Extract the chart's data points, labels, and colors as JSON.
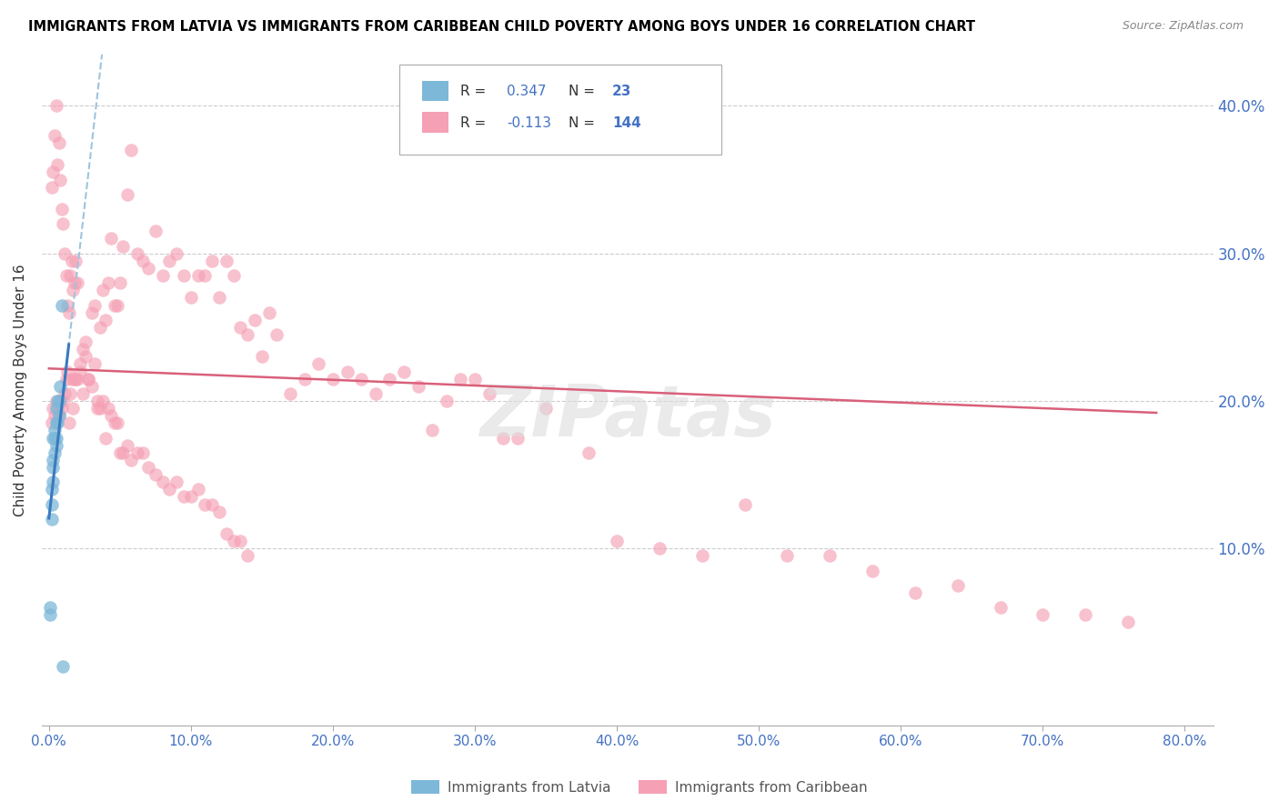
{
  "title": "IMMIGRANTS FROM LATVIA VS IMMIGRANTS FROM CARIBBEAN CHILD POVERTY AMONG BOYS UNDER 16 CORRELATION CHART",
  "source": "Source: ZipAtlas.com",
  "ylabel": "Child Poverty Among Boys Under 16",
  "ytick_labels": [
    "",
    "10.0%",
    "20.0%",
    "30.0%",
    "40.0%"
  ],
  "ytick_vals": [
    0.0,
    0.1,
    0.2,
    0.3,
    0.4
  ],
  "xtick_vals": [
    0.0,
    0.1,
    0.2,
    0.3,
    0.4,
    0.5,
    0.6,
    0.7,
    0.8
  ],
  "xlim": [
    -0.005,
    0.82
  ],
  "ylim": [
    -0.02,
    0.435
  ],
  "R_latvia": 0.347,
  "N_latvia": 23,
  "R_caribbean": -0.113,
  "N_caribbean": 144,
  "blue_color": "#7db8d8",
  "pink_color": "#f5a0b5",
  "trend_blue_solid": "#3a7abf",
  "trend_blue_dashed": "#9dc4df",
  "trend_pink": "#d9607a",
  "watermark": "ZIPatas",
  "latvia_x": [
    0.001,
    0.001,
    0.002,
    0.002,
    0.002,
    0.003,
    0.003,
    0.003,
    0.003,
    0.004,
    0.004,
    0.004,
    0.005,
    0.005,
    0.005,
    0.005,
    0.006,
    0.006,
    0.007,
    0.007,
    0.008,
    0.009,
    0.01
  ],
  "latvia_y": [
    0.055,
    0.06,
    0.12,
    0.13,
    0.14,
    0.145,
    0.155,
    0.16,
    0.175,
    0.165,
    0.175,
    0.18,
    0.17,
    0.175,
    0.185,
    0.195,
    0.185,
    0.2,
    0.19,
    0.2,
    0.21,
    0.265,
    0.02
  ],
  "caribbean_x": [
    0.002,
    0.003,
    0.004,
    0.005,
    0.006,
    0.007,
    0.008,
    0.009,
    0.01,
    0.011,
    0.012,
    0.013,
    0.014,
    0.015,
    0.016,
    0.017,
    0.018,
    0.019,
    0.02,
    0.022,
    0.024,
    0.026,
    0.028,
    0.03,
    0.032,
    0.034,
    0.036,
    0.038,
    0.04,
    0.042,
    0.044,
    0.046,
    0.048,
    0.05,
    0.052,
    0.055,
    0.058,
    0.062,
    0.066,
    0.07,
    0.075,
    0.08,
    0.085,
    0.09,
    0.095,
    0.1,
    0.105,
    0.11,
    0.115,
    0.12,
    0.125,
    0.13,
    0.135,
    0.14,
    0.145,
    0.15,
    0.155,
    0.16,
    0.17,
    0.18,
    0.19,
    0.2,
    0.21,
    0.22,
    0.23,
    0.24,
    0.25,
    0.26,
    0.27,
    0.28,
    0.29,
    0.3,
    0.31,
    0.32,
    0.33,
    0.35,
    0.38,
    0.4,
    0.43,
    0.46,
    0.49,
    0.52,
    0.55,
    0.58,
    0.61,
    0.64,
    0.67,
    0.7,
    0.73,
    0.76
  ],
  "caribbean_y": [
    0.185,
    0.195,
    0.19,
    0.2,
    0.195,
    0.19,
    0.2,
    0.195,
    0.2,
    0.205,
    0.215,
    0.22,
    0.185,
    0.205,
    0.215,
    0.195,
    0.215,
    0.215,
    0.215,
    0.22,
    0.205,
    0.23,
    0.215,
    0.26,
    0.265,
    0.2,
    0.25,
    0.275,
    0.255,
    0.28,
    0.31,
    0.265,
    0.265,
    0.28,
    0.305,
    0.34,
    0.37,
    0.3,
    0.295,
    0.29,
    0.315,
    0.285,
    0.295,
    0.3,
    0.285,
    0.27,
    0.285,
    0.285,
    0.295,
    0.27,
    0.295,
    0.285,
    0.25,
    0.245,
    0.255,
    0.23,
    0.26,
    0.245,
    0.205,
    0.215,
    0.225,
    0.215,
    0.22,
    0.215,
    0.205,
    0.215,
    0.22,
    0.21,
    0.18,
    0.2,
    0.215,
    0.215,
    0.205,
    0.175,
    0.175,
    0.195,
    0.165,
    0.105,
    0.1,
    0.095,
    0.13,
    0.095,
    0.095,
    0.085,
    0.07,
    0.075,
    0.06,
    0.055,
    0.055,
    0.05
  ],
  "caribbean_y_extra": [
    0.345,
    0.355,
    0.38,
    0.4,
    0.36,
    0.375,
    0.35,
    0.33,
    0.32,
    0.3,
    0.285,
    0.265,
    0.26,
    0.285,
    0.295,
    0.275,
    0.28,
    0.295,
    0.28,
    0.225,
    0.235,
    0.24,
    0.215,
    0.21,
    0.225,
    0.195,
    0.195,
    0.2,
    0.175,
    0.195,
    0.19,
    0.185,
    0.185,
    0.165,
    0.165,
    0.17,
    0.16,
    0.165,
    0.165,
    0.155,
    0.15,
    0.145,
    0.14,
    0.145,
    0.135,
    0.135,
    0.14,
    0.13,
    0.13,
    0.125,
    0.11,
    0.105,
    0.105,
    0.095
  ]
}
